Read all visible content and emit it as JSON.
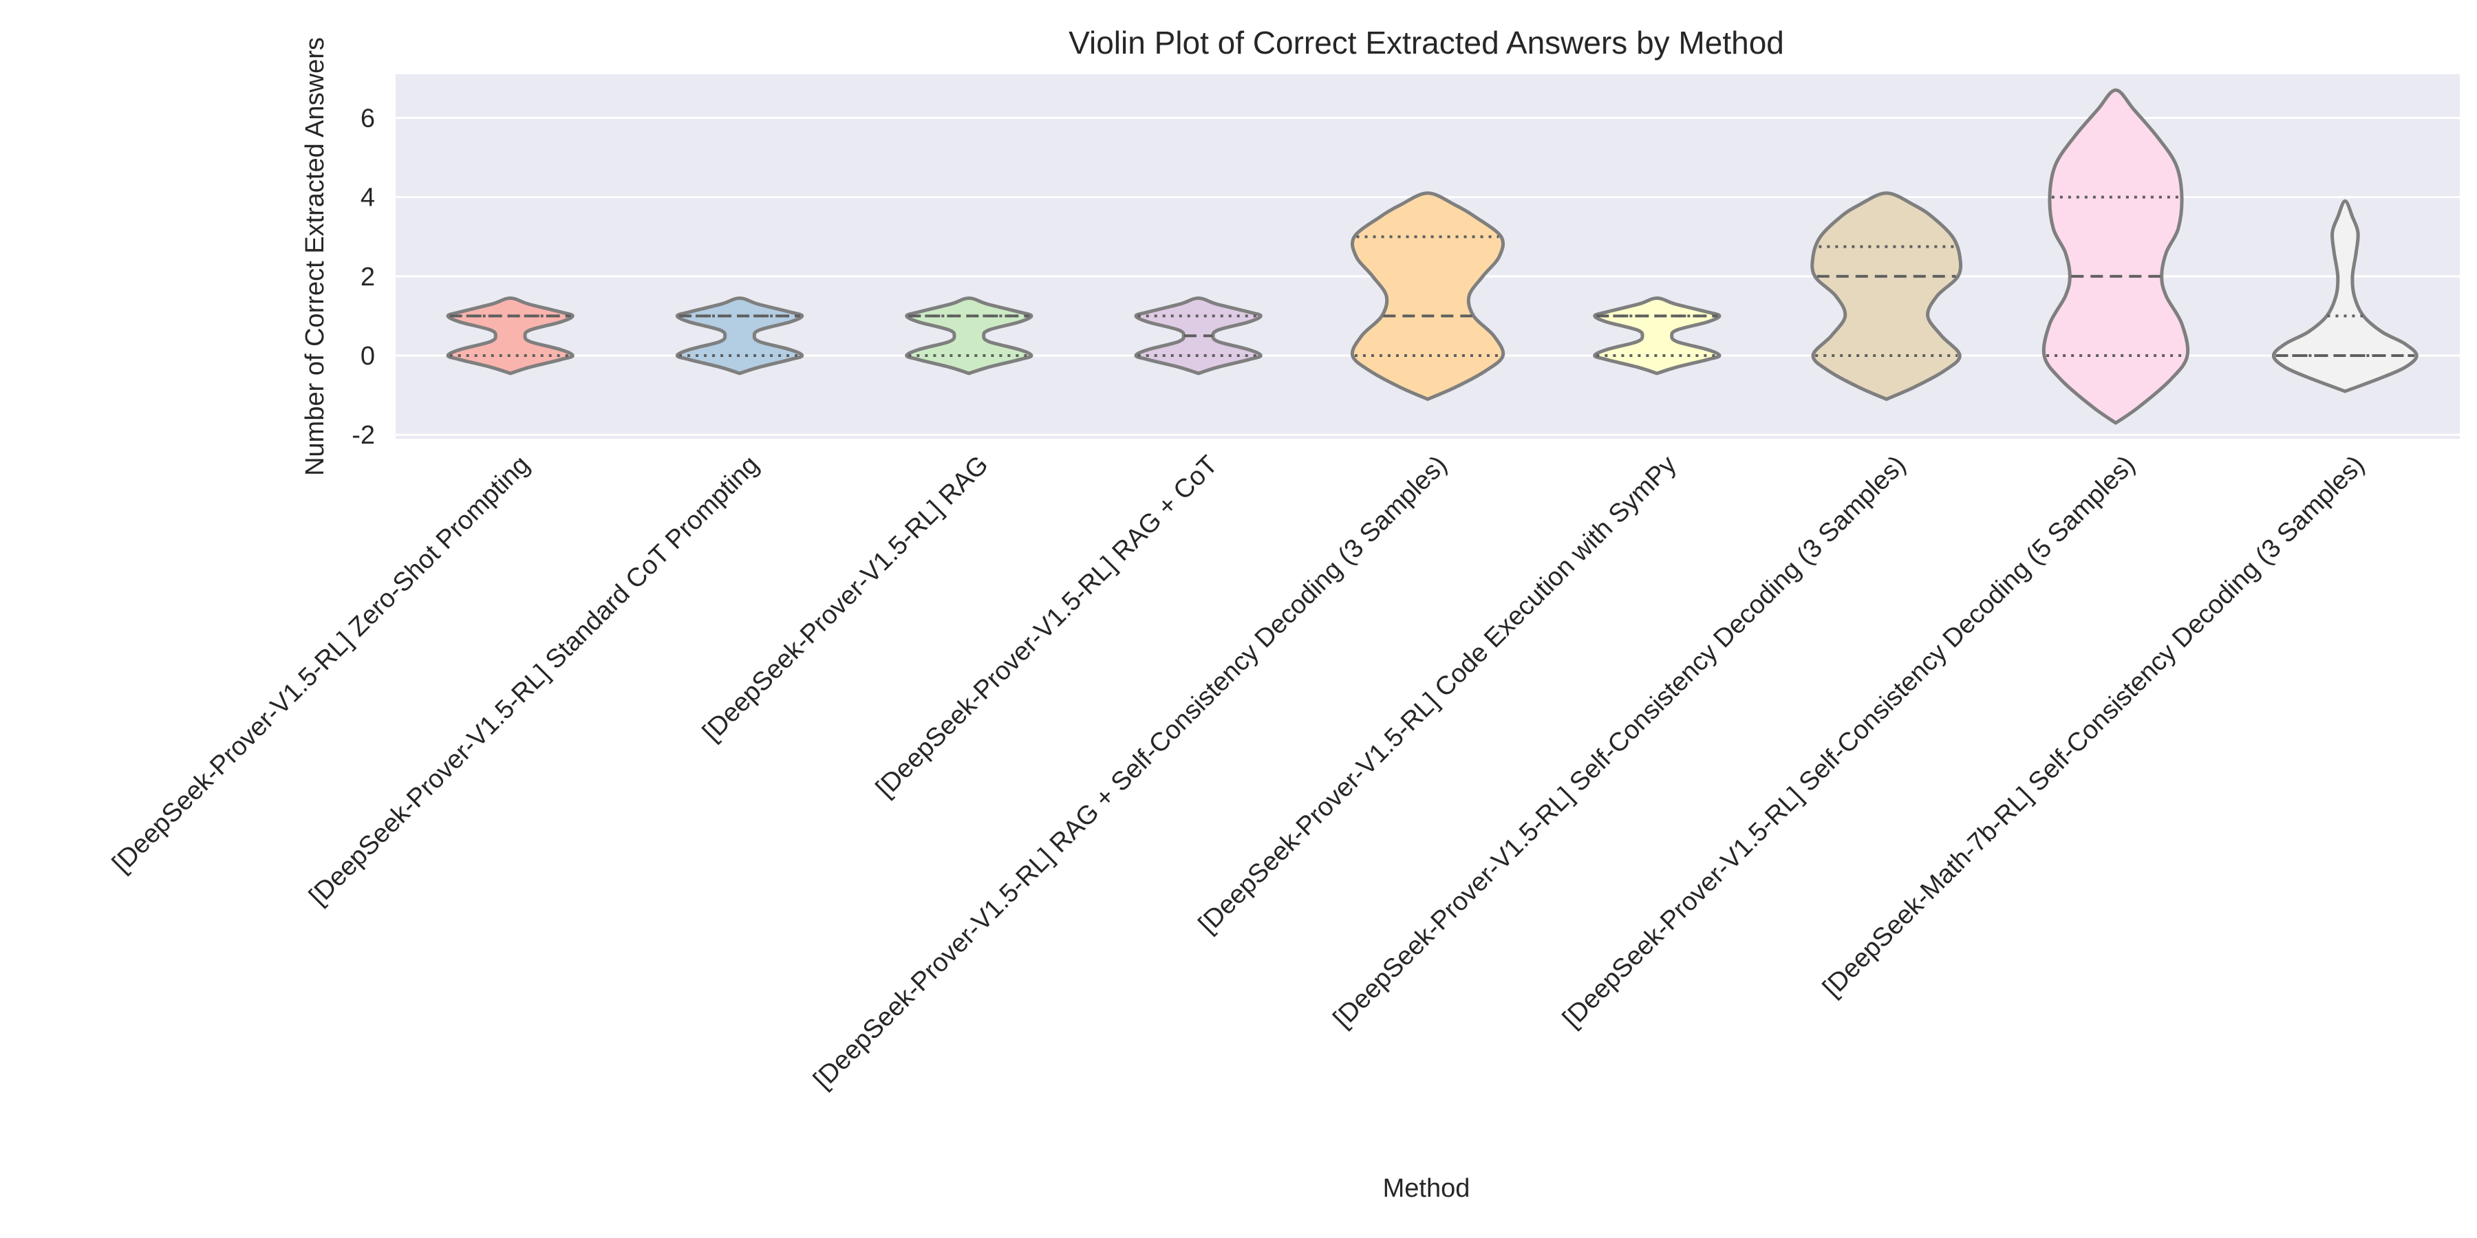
{
  "chart_data": {
    "type": "violin",
    "title": "Violin Plot of Correct Extracted Answers by Method",
    "xlabel": "Method",
    "ylabel": "Number of Correct Extracted Answers",
    "ylim": [
      -2.1,
      7.1
    ],
    "yticks": [
      -2,
      0,
      2,
      4,
      6
    ],
    "grid": true,
    "background": "#eaeaf2",
    "outline_color": "#7f7f7f",
    "categories": [
      "[DeepSeek-Prover-V1.5-RL] Zero-Shot Prompting",
      "[DeepSeek-Prover-V1.5-RL] Standard CoT Prompting",
      "[DeepSeek-Prover-V1.5-RL] RAG",
      "[DeepSeek-Prover-V1.5-RL] RAG + CoT",
      "[DeepSeek-Prover-V1.5-RL] RAG + Self-Consistency Decoding (3 Samples)",
      "[DeepSeek-Prover-V1.5-RL] Code Execution with SymPy",
      "[DeepSeek-Prover-V1.5-RL] Self-Consistency Decoding (3 Samples)",
      "[DeepSeek-Prover-V1.5-RL] Self-Consistency Decoding (5 Samples)",
      "[DeepSeek-Math-7b-RL] Self-Consistency Decoding (3 Samples)"
    ],
    "colors": [
      "#f9b4ae",
      "#b3cde3",
      "#ccebc5",
      "#decbe4",
      "#fed9a6",
      "#ffffcc",
      "#e5d8bd",
      "#fddaec",
      "#f2f2f2"
    ],
    "violins": [
      {
        "min": -0.45,
        "max": 1.45,
        "q1": 0,
        "median": 1,
        "q3": 1,
        "profile": [
          [
            -0.45,
            0.0
          ],
          [
            -0.3,
            0.2
          ],
          [
            -0.1,
            0.55
          ],
          [
            0.0,
            0.68
          ],
          [
            0.15,
            0.55
          ],
          [
            0.35,
            0.22
          ],
          [
            0.5,
            0.16
          ],
          [
            0.65,
            0.22
          ],
          [
            0.85,
            0.55
          ],
          [
            1.0,
            0.68
          ],
          [
            1.1,
            0.55
          ],
          [
            1.3,
            0.2
          ],
          [
            1.45,
            0.0
          ]
        ]
      },
      {
        "min": -0.45,
        "max": 1.45,
        "q1": 0,
        "median": 1,
        "q3": 1,
        "profile": [
          [
            -0.45,
            0.0
          ],
          [
            -0.3,
            0.2
          ],
          [
            -0.1,
            0.55
          ],
          [
            0.0,
            0.68
          ],
          [
            0.15,
            0.55
          ],
          [
            0.35,
            0.22
          ],
          [
            0.5,
            0.16
          ],
          [
            0.65,
            0.22
          ],
          [
            0.85,
            0.55
          ],
          [
            1.0,
            0.68
          ],
          [
            1.1,
            0.55
          ],
          [
            1.3,
            0.2
          ],
          [
            1.45,
            0.0
          ]
        ]
      },
      {
        "min": -0.45,
        "max": 1.45,
        "q1": 0,
        "median": 1,
        "q3": 1,
        "profile": [
          [
            -0.45,
            0.0
          ],
          [
            -0.3,
            0.2
          ],
          [
            -0.1,
            0.55
          ],
          [
            0.0,
            0.68
          ],
          [
            0.15,
            0.55
          ],
          [
            0.35,
            0.22
          ],
          [
            0.5,
            0.16
          ],
          [
            0.65,
            0.22
          ],
          [
            0.85,
            0.55
          ],
          [
            1.0,
            0.68
          ],
          [
            1.1,
            0.55
          ],
          [
            1.3,
            0.2
          ],
          [
            1.45,
            0.0
          ]
        ]
      },
      {
        "min": -0.45,
        "max": 1.45,
        "q1": 0,
        "median": 0.5,
        "q3": 1,
        "profile": [
          [
            -0.45,
            0.0
          ],
          [
            -0.3,
            0.2
          ],
          [
            -0.1,
            0.55
          ],
          [
            0.0,
            0.68
          ],
          [
            0.15,
            0.55
          ],
          [
            0.35,
            0.22
          ],
          [
            0.5,
            0.16
          ],
          [
            0.65,
            0.22
          ],
          [
            0.85,
            0.55
          ],
          [
            1.0,
            0.68
          ],
          [
            1.1,
            0.55
          ],
          [
            1.3,
            0.2
          ],
          [
            1.45,
            0.0
          ]
        ]
      },
      {
        "min": -1.1,
        "max": 4.1,
        "q1": 0,
        "median": 1,
        "q3": 3,
        "profile": [
          [
            -1.1,
            0.0
          ],
          [
            -0.8,
            0.3
          ],
          [
            -0.4,
            0.62
          ],
          [
            0.0,
            0.82
          ],
          [
            0.5,
            0.72
          ],
          [
            1.0,
            0.5
          ],
          [
            1.5,
            0.45
          ],
          [
            2.0,
            0.6
          ],
          [
            2.5,
            0.78
          ],
          [
            3.0,
            0.8
          ],
          [
            3.5,
            0.52
          ],
          [
            3.8,
            0.3
          ],
          [
            4.1,
            0.0
          ]
        ]
      },
      {
        "min": -0.45,
        "max": 1.45,
        "q1": 0,
        "median": 1,
        "q3": 1,
        "profile": [
          [
            -0.45,
            0.0
          ],
          [
            -0.3,
            0.2
          ],
          [
            -0.1,
            0.55
          ],
          [
            0.0,
            0.68
          ],
          [
            0.15,
            0.55
          ],
          [
            0.35,
            0.22
          ],
          [
            0.5,
            0.16
          ],
          [
            0.65,
            0.22
          ],
          [
            0.85,
            0.55
          ],
          [
            1.0,
            0.68
          ],
          [
            1.1,
            0.55
          ],
          [
            1.3,
            0.2
          ],
          [
            1.45,
            0.0
          ]
        ]
      },
      {
        "min": -1.1,
        "max": 4.1,
        "q1": 0,
        "median": 2,
        "q3": 2.75,
        "profile": [
          [
            -1.1,
            0.0
          ],
          [
            -0.8,
            0.3
          ],
          [
            -0.4,
            0.62
          ],
          [
            0.0,
            0.8
          ],
          [
            0.5,
            0.6
          ],
          [
            1.0,
            0.45
          ],
          [
            1.5,
            0.55
          ],
          [
            2.0,
            0.78
          ],
          [
            2.5,
            0.8
          ],
          [
            3.0,
            0.72
          ],
          [
            3.5,
            0.5
          ],
          [
            3.8,
            0.3
          ],
          [
            4.1,
            0.0
          ]
        ]
      },
      {
        "min": -1.7,
        "max": 6.7,
        "q1": 0,
        "median": 2,
        "q3": 4,
        "profile": [
          [
            -1.7,
            0.0
          ],
          [
            -1.3,
            0.25
          ],
          [
            -0.6,
            0.6
          ],
          [
            0.0,
            0.78
          ],
          [
            0.8,
            0.72
          ],
          [
            1.5,
            0.55
          ],
          [
            2.0,
            0.5
          ],
          [
            2.6,
            0.55
          ],
          [
            3.2,
            0.68
          ],
          [
            4.0,
            0.72
          ],
          [
            4.8,
            0.66
          ],
          [
            5.5,
            0.46
          ],
          [
            6.2,
            0.2
          ],
          [
            6.7,
            0.0
          ]
        ]
      },
      {
        "min": -0.9,
        "max": 3.9,
        "q1": 0,
        "median": 0,
        "q3": 1,
        "profile": [
          [
            -0.9,
            0.0
          ],
          [
            -0.6,
            0.35
          ],
          [
            -0.3,
            0.65
          ],
          [
            0.0,
            0.78
          ],
          [
            0.3,
            0.65
          ],
          [
            0.6,
            0.4
          ],
          [
            1.0,
            0.2
          ],
          [
            1.5,
            0.1
          ],
          [
            2.0,
            0.08
          ],
          [
            2.6,
            0.12
          ],
          [
            3.1,
            0.14
          ],
          [
            3.5,
            0.08
          ],
          [
            3.9,
            0.0
          ]
        ]
      }
    ]
  }
}
